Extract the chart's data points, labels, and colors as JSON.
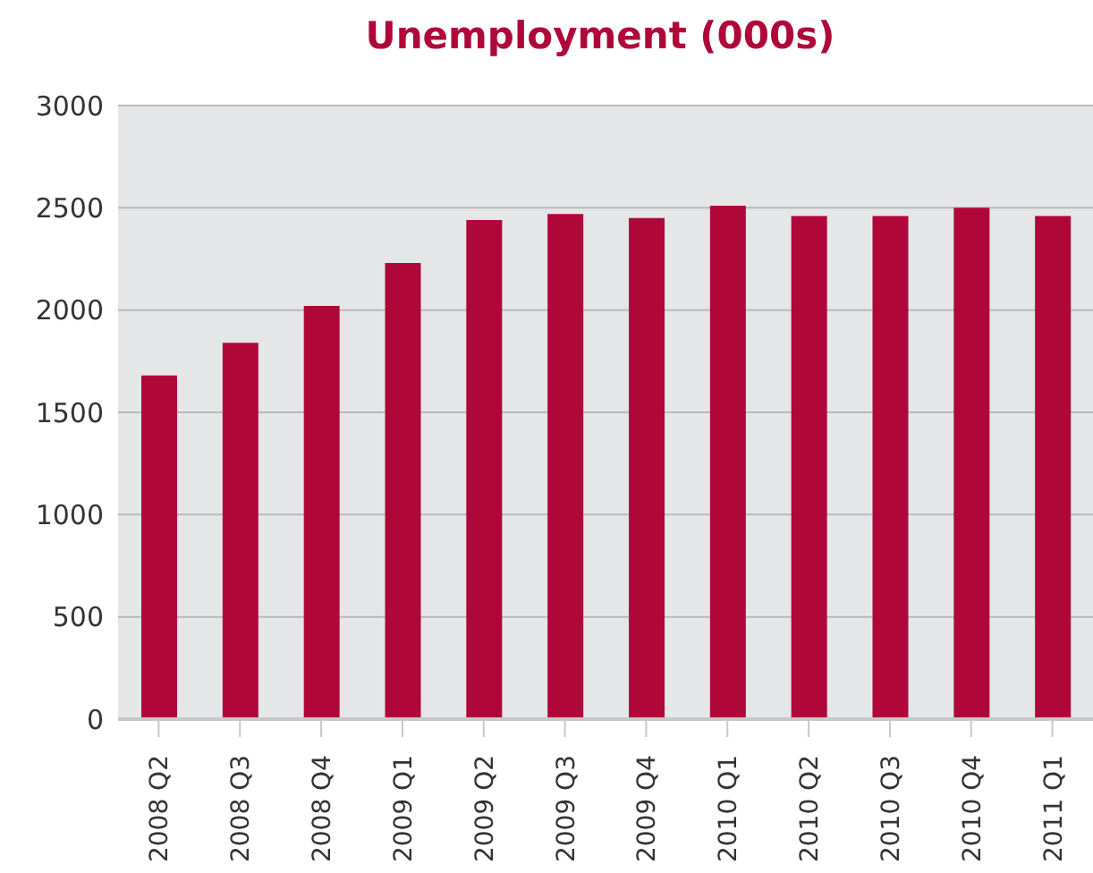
{
  "chart_data": {
    "type": "bar",
    "title": "Unemployment (000s)",
    "categories": [
      "2008 Q2",
      "2008 Q3",
      "2008 Q4",
      "2009 Q1",
      "2009 Q2",
      "2009 Q3",
      "2009 Q4",
      "2010 Q1",
      "2010 Q2",
      "2010 Q3",
      "2010 Q4",
      "2011 Q1"
    ],
    "values": [
      1680,
      1840,
      2020,
      2230,
      2440,
      2470,
      2450,
      2510,
      2460,
      2460,
      2500,
      2460
    ],
    "color": "#b0073a",
    "ylim": [
      0,
      3000
    ],
    "yticks": [
      0,
      500,
      1000,
      1500,
      2000,
      2500,
      3000
    ],
    "grid": "y",
    "legend": false
  }
}
